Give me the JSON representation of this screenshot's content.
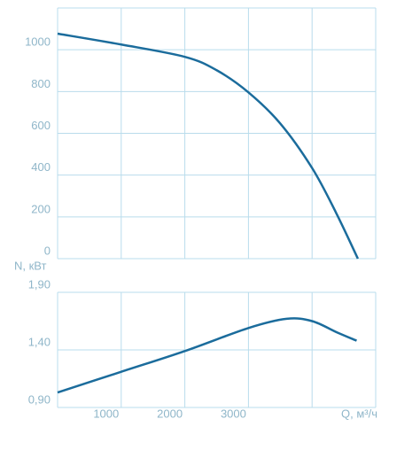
{
  "chart_data": [
    {
      "type": "line",
      "ylabel": "N, кВт",
      "x": [
        0,
        1000,
        2000,
        2500,
        3000,
        3500,
        4000,
        4375,
        4720
      ],
      "series": [
        {
          "color": "#1b6c9c",
          "values": [
            1077,
            1025,
            966,
            902,
            796,
            647,
            434,
            221,
            0
          ]
        }
      ],
      "xlim": [
        0,
        5000
      ],
      "xgrid": [
        0,
        1000,
        2000,
        3000,
        4000,
        5000
      ],
      "ylim": [
        0,
        1200
      ],
      "yticks": [
        0,
        200,
        400,
        600,
        800,
        1000
      ],
      "grid": true
    },
    {
      "type": "line",
      "xlabel": "Q, м³/ч",
      "x": [
        0,
        1000,
        2000,
        3000,
        3600,
        4000,
        4400,
        4700
      ],
      "series": [
        {
          "color": "#1b6c9c",
          "values": [
            1.03,
            1.21,
            1.39,
            1.59,
            1.67,
            1.65,
            1.55,
            1.48
          ]
        }
      ],
      "xlim": [
        0,
        5000
      ],
      "xticks": [
        1000,
        2000,
        3000
      ],
      "xgrid": [
        0,
        1000,
        2000,
        3000,
        4000,
        5000
      ],
      "ylim": [
        0.9,
        1.9
      ],
      "yticks": [
        {
          "value": 0.9,
          "label": "0,90"
        },
        {
          "value": 1.4,
          "label": "1,40"
        },
        {
          "value": 1.9,
          "label": "1,90"
        }
      ],
      "grid": true
    }
  ]
}
